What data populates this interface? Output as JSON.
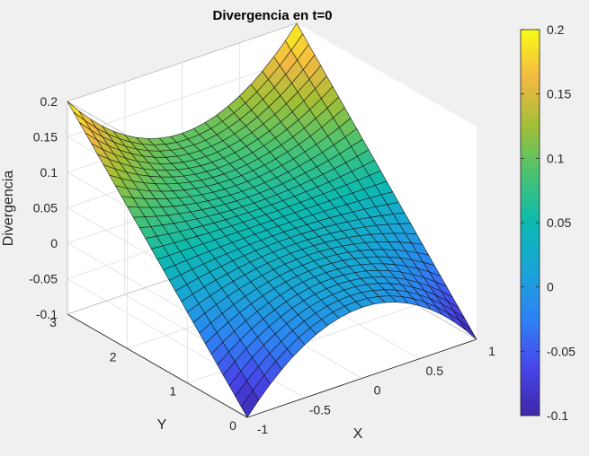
{
  "chart_data": {
    "type": "surface",
    "title": "Divergencia en t=0",
    "xlabel": "X",
    "ylabel": "Y",
    "zlabel": "Divergencia",
    "x_range": [
      -1,
      1
    ],
    "y_range": [
      0,
      3
    ],
    "z_range": [
      -0.1,
      0.2
    ],
    "x_ticks": [
      "-1",
      "-0.5",
      "0",
      "0.5",
      "1"
    ],
    "y_ticks": [
      "0",
      "1",
      "2",
      "3"
    ],
    "z_ticks": [
      "-0.1",
      "-0.05",
      "0",
      "0.05",
      "0.1",
      "0.15",
      "0.2"
    ],
    "colorbar_ticks": [
      "-0.1",
      "-0.05",
      "0",
      "0.05",
      "0.1",
      "0.15",
      "0.2"
    ],
    "colormap": "parula",
    "grid": true,
    "corner_values": [
      {
        "x": -1,
        "y": 0,
        "z": -0.1
      },
      {
        "x": 1,
        "y": 0,
        "z": -0.1
      },
      {
        "x": -1,
        "y": 3,
        "z": 0.2
      },
      {
        "x": 1,
        "y": 3,
        "z": 0.2
      },
      {
        "x": 0,
        "y": 0,
        "z": 0.0
      },
      {
        "x": 0,
        "y": 3,
        "z": 0.1
      }
    ]
  }
}
